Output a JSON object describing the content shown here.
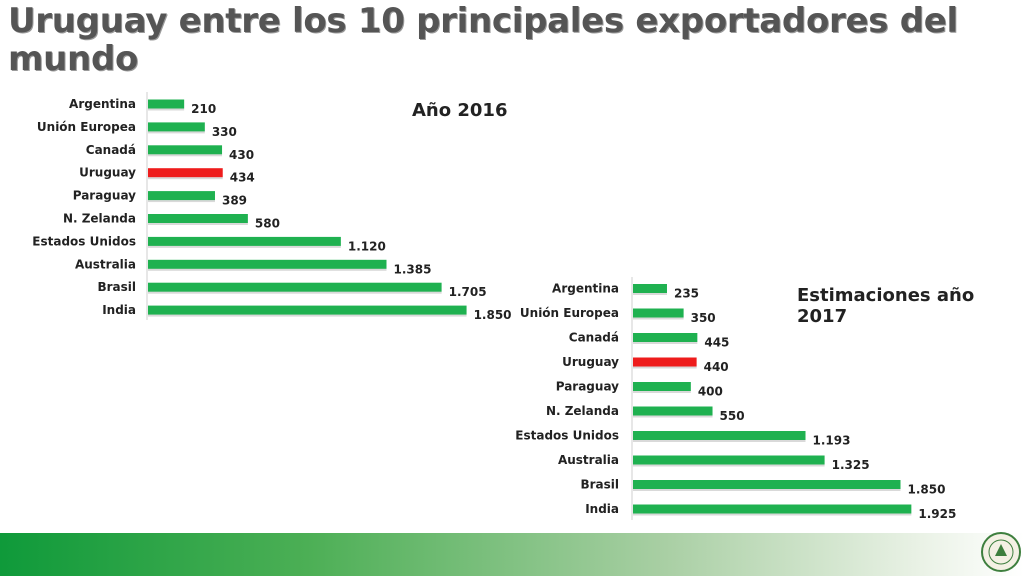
{
  "title": "Uruguay entre los 10 principales exportadores del mundo",
  "colors": {
    "bar": "#1fb150",
    "highlight": "#ee1c1c",
    "axis": "#cfcfcf"
  },
  "chart_data": [
    {
      "type": "bar",
      "orientation": "horizontal",
      "title": "Año 2016",
      "categories": [
        "Argentina",
        "Unión Europea",
        "Canadá",
        "Uruguay",
        "Paraguay",
        "N. Zelanda",
        "Estados Unidos",
        "Australia",
        "Brasil",
        "India"
      ],
      "values": [
        210,
        330,
        430,
        434,
        389,
        580,
        1120,
        1385,
        1705,
        1850
      ],
      "value_labels": [
        "210",
        "330",
        "430",
        "434",
        "389",
        "580",
        "1.120",
        "1.385",
        "1.705",
        "1.850"
      ],
      "highlight": "Uruguay"
    },
    {
      "type": "bar",
      "orientation": "horizontal",
      "title": "Estimaciones año 2017",
      "categories": [
        "Argentina",
        "Unión Europea",
        "Canadá",
        "Uruguay",
        "Paraguay",
        "N. Zelanda",
        "Estados Unidos",
        "Australia",
        "Brasil",
        "India"
      ],
      "values": [
        235,
        350,
        445,
        440,
        400,
        550,
        1193,
        1325,
        1850,
        1925
      ],
      "value_labels": [
        "235",
        "350",
        "445",
        "440",
        "400",
        "550",
        "1.193",
        "1.325",
        "1.850",
        "1.925"
      ],
      "highlight": "Uruguay"
    }
  ]
}
